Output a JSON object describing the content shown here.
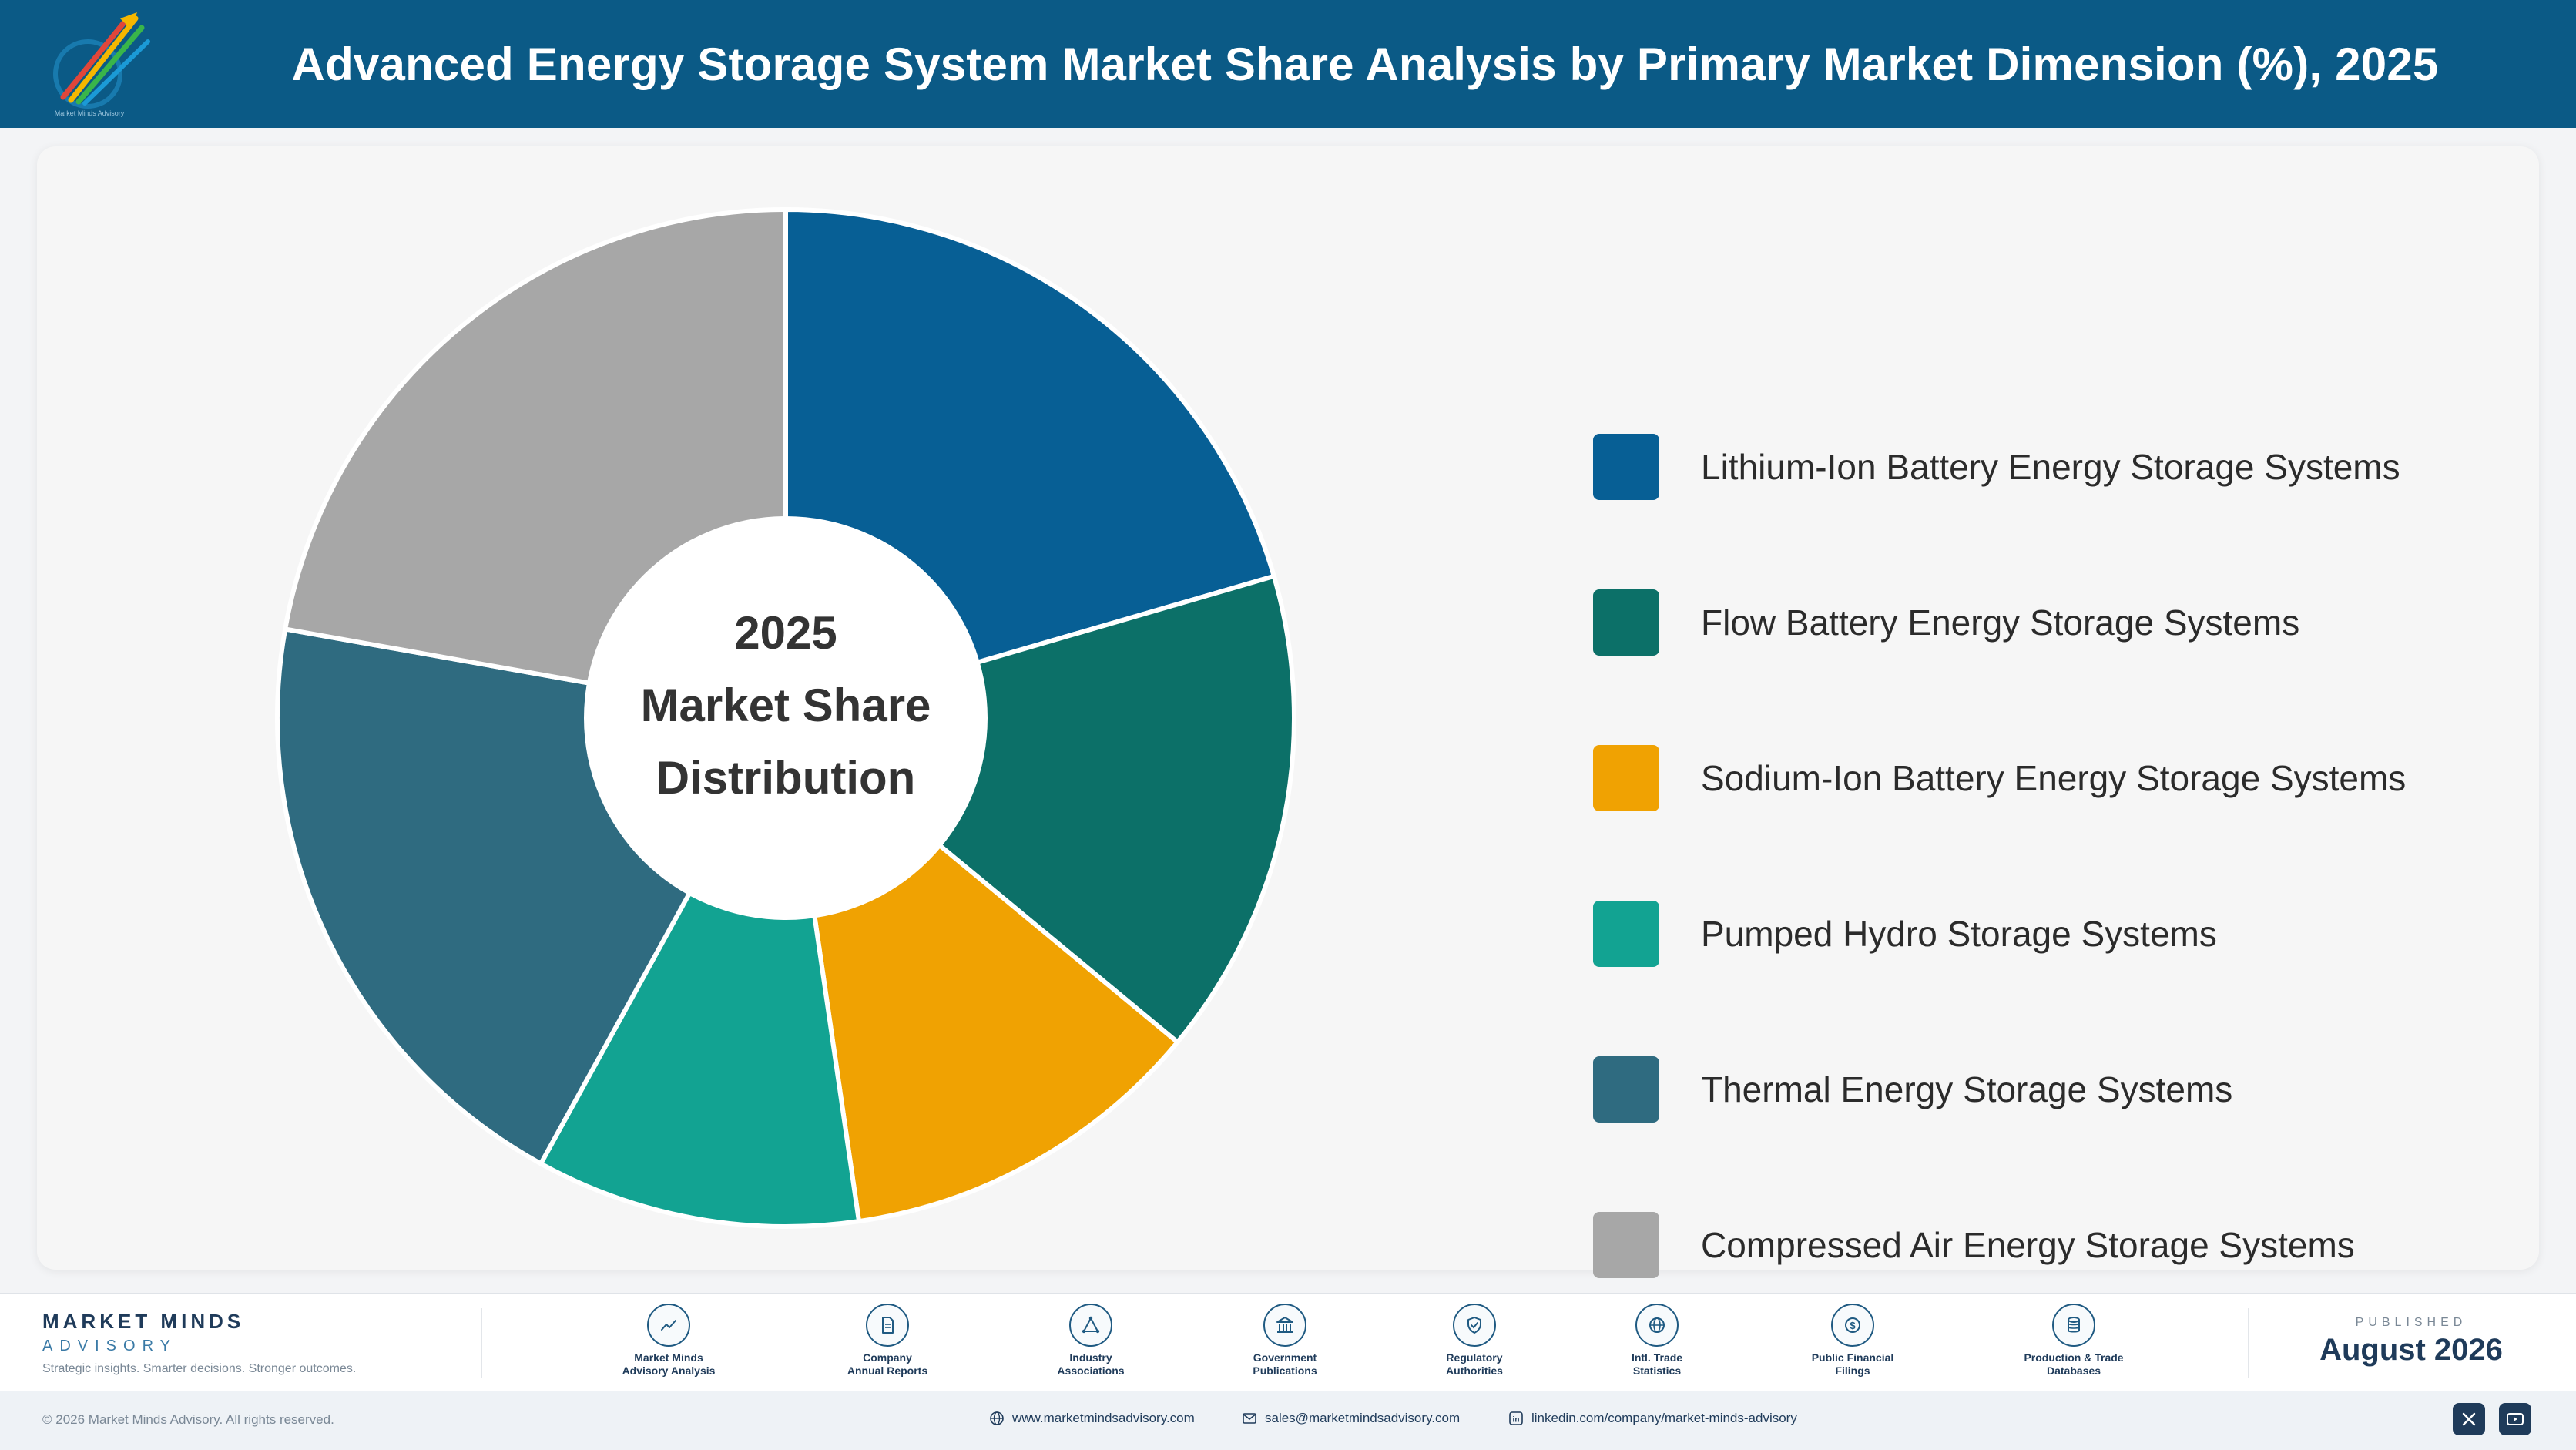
{
  "header": {
    "title": "Advanced Energy Storage System Market Share Analysis by Primary Market Dimension (%), 2025",
    "logo_tagline": "Market Minds Advisory"
  },
  "chart_data": {
    "type": "pie",
    "donut": true,
    "center_text": [
      "2025",
      "Market Share",
      "Distribution"
    ],
    "categories": [
      "Lithium-Ion Battery Energy Storage Systems",
      "Flow Battery Energy Storage Systems",
      "Sodium-Ion Battery Energy Storage Systems",
      "Pumped Hydro Storage Systems",
      "Thermal Energy Storage Systems",
      "Compressed Air Energy Storage Systems"
    ],
    "values": [
      20.5,
      15.5,
      11.7,
      10.3,
      19.8,
      22.2
    ],
    "colors": [
      "#075f95",
      "#0c7068",
      "#f0a202",
      "#12a392",
      "#2f6b80",
      "#a7a7a7"
    ],
    "legend_position": "right"
  },
  "footer": {
    "brand_name": "MARKET MINDS",
    "brand_sub": "ADVISORY",
    "brand_tagline": "Strategic insights. Smarter decisions. Stronger outcomes.",
    "sources": [
      {
        "icon": "chart-line-icon",
        "label": "Market Minds\nAdvisory Analysis"
      },
      {
        "icon": "document-icon",
        "label": "Company\nAnnual Reports"
      },
      {
        "icon": "network-icon",
        "label": "Industry\nAssociations"
      },
      {
        "icon": "government-building-icon",
        "label": "Government\nPublications"
      },
      {
        "icon": "shield-check-icon",
        "label": "Regulatory\nAuthorities"
      },
      {
        "icon": "globe-icon",
        "label": "Intl. Trade\nStatistics"
      },
      {
        "icon": "dollar-circle-icon",
        "label": "Public Financial\nFilings"
      },
      {
        "icon": "database-icon",
        "label": "Production & Trade\nDatabases"
      }
    ],
    "published_label": "PUBLISHED",
    "published_date": "August 2026",
    "copyright": "© 2026 Market Minds Advisory. All rights reserved.",
    "website": "www.marketmindsadvisory.com",
    "email": "sales@marketmindsadvisory.com",
    "linkedin": "linkedin.com/company/market-minds-advisory"
  }
}
